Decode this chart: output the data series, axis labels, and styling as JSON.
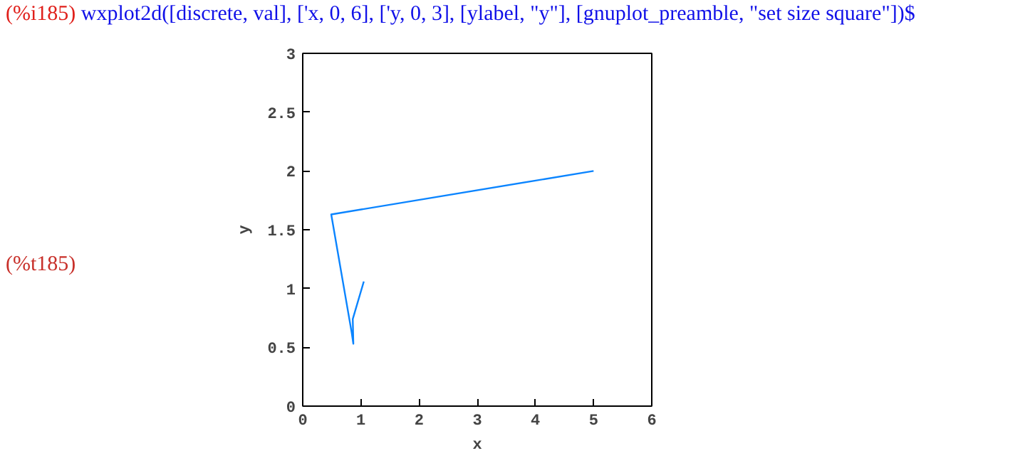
{
  "chart_data": {
    "type": "line",
    "xlabel": "x",
    "ylabel": "y",
    "annotations": [
      "(%i185)",
      "wxplot2d([discrete, val], ['x, 0, 6], ['y, 0, 3], [ylabel, \"y\"], [gnuplot_preamble, \"set size square\"])$",
      "(%t185)"
    ],
    "x": [
      5,
      0.49,
      0.84,
      0.87,
      0.86,
      1.05
    ],
    "series": [
      {
        "color": "#0a84ff",
        "values": [
          2,
          1.63,
          0.63,
          0.53,
          0.74,
          1.06
        ]
      }
    ],
    "xlim": [
      0,
      6
    ],
    "ylim": [
      0,
      3
    ],
    "xticks": [
      0,
      1,
      2,
      3,
      4,
      5,
      6
    ],
    "yticks": [
      0,
      0.5,
      1,
      1.5,
      2,
      2.5,
      3
    ],
    "grid": false,
    "marker": "none",
    "line_style": "solid"
  }
}
